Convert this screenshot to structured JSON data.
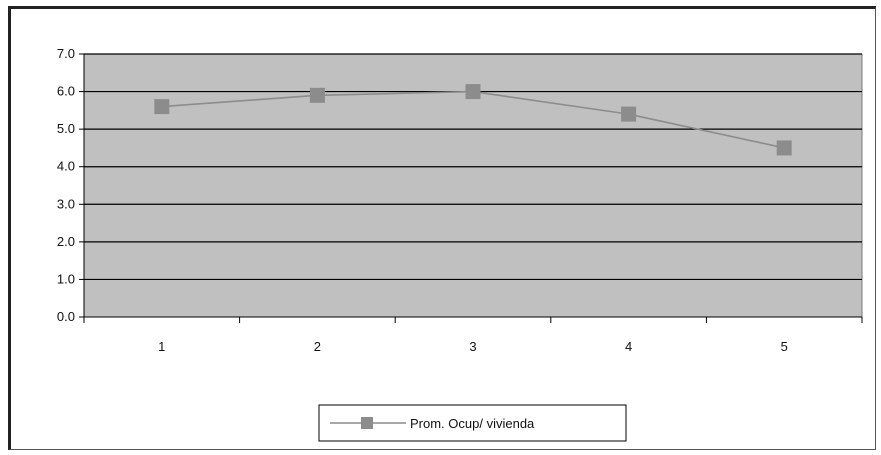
{
  "chart_data": {
    "type": "line",
    "title": "",
    "xlabel": "",
    "ylabel": "",
    "categories": [
      "1",
      "2",
      "3",
      "4",
      "5"
    ],
    "series": [
      {
        "name": "Prom. Ocup/ vivienda",
        "values": [
          5.6,
          5.9,
          6.0,
          5.4,
          4.5
        ],
        "color": "#8c8c8c"
      }
    ],
    "ylim": [
      0,
      7
    ],
    "yticks": [
      "0.0",
      "1.0",
      "2.0",
      "3.0",
      "4.0",
      "5.0",
      "6.0",
      "7.0"
    ],
    "grid": true,
    "legend_position": "bottom-center",
    "plot_background": "#c0c0c0",
    "gridline_color": "#000000"
  }
}
